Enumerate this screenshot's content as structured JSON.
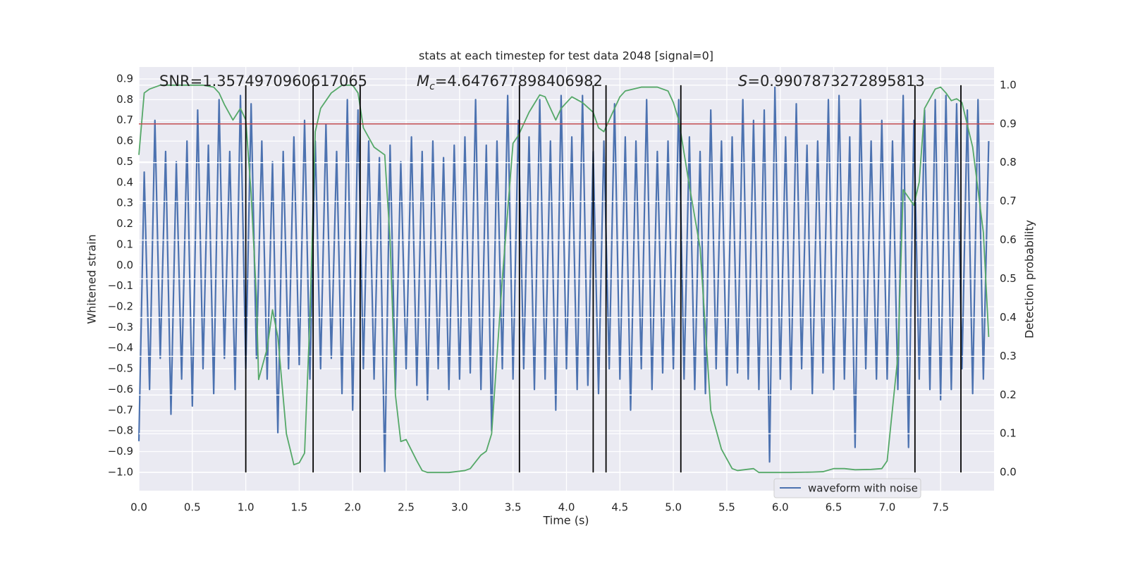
{
  "chart_data": {
    "type": "line",
    "title": "stats at each timestep for test data 2048 [signal=0]",
    "xlabel": "Time (s)",
    "ylabel": "Whitened strain",
    "y2label": "Detection probability",
    "xlim": [
      0,
      8.0
    ],
    "ylim": [
      -1.089,
      0.958
    ],
    "y2lim": [
      -0.047,
      1.047
    ],
    "xticks": [
      {
        "value": 0,
        "label": "0.0"
      },
      0.5,
      {
        "value": 1,
        "label": "1.0"
      },
      1.5,
      {
        "value": 2,
        "label": "2.0"
      },
      2.5,
      {
        "value": 3,
        "label": "3.0"
      },
      3.5,
      {
        "value": 4,
        "label": "4.0"
      },
      4.5,
      {
        "value": 5,
        "label": "5.0"
      },
      5.5,
      {
        "value": 6,
        "label": "6.0"
      },
      6.5,
      {
        "value": 7,
        "label": "7.0"
      },
      7.5
    ],
    "yticks": [
      0.9,
      0.8,
      0.7,
      0.6,
      0.5,
      0.4,
      0.3,
      0.2,
      0.1,
      {
        "value": 0,
        "label": "0.0"
      },
      {
        "value": -0.1,
        "label": "−0.1"
      },
      {
        "value": -0.2,
        "label": "−0.2"
      },
      {
        "value": -0.3,
        "label": "−0.3"
      },
      {
        "value": -0.4,
        "label": "−0.4"
      },
      {
        "value": -0.5,
        "label": "−0.5"
      },
      {
        "value": -0.6,
        "label": "−0.6"
      },
      {
        "value": -0.7,
        "label": "−0.7"
      },
      {
        "value": -0.8,
        "label": "−0.8"
      },
      {
        "value": -0.9,
        "label": "−0.9"
      },
      {
        "value": -1.0,
        "label": "−1.0"
      }
    ],
    "y2ticks": [
      {
        "value": 0,
        "label": "0.0"
      },
      0.1,
      0.2,
      0.3,
      0.4,
      0.5,
      0.6,
      0.7,
      0.8,
      0.9,
      {
        "value": 1,
        "label": "1.0"
      }
    ],
    "grid": true,
    "legend": "lower right",
    "series": [
      {
        "name": "waveform with noise",
        "color": "#4c72b0",
        "x": [
          0,
          0.05,
          0.1,
          0.15,
          0.2,
          0.25,
          0.3,
          0.35,
          0.4,
          0.45,
          0.5,
          0.55,
          0.6,
          0.65,
          0.7,
          0.75,
          0.8,
          0.85,
          0.9,
          0.95,
          1.0,
          1.05,
          1.1,
          1.15,
          1.2,
          1.25,
          1.3,
          1.35,
          1.4,
          1.45,
          1.5,
          1.55,
          1.6,
          1.65,
          1.7,
          1.75,
          1.8,
          1.85,
          1.9,
          1.95,
          2.0,
          2.05,
          2.1,
          2.15,
          2.2,
          2.25,
          2.3,
          2.35,
          2.4,
          2.45,
          2.5,
          2.55,
          2.6,
          2.65,
          2.7,
          2.75,
          2.8,
          2.85,
          2.9,
          2.95,
          3.0,
          3.05,
          3.1,
          3.15,
          3.2,
          3.25,
          3.3,
          3.35,
          3.4,
          3.45,
          3.5,
          3.55,
          3.6,
          3.65,
          3.7,
          3.75,
          3.8,
          3.85,
          3.9,
          3.95,
          4.0,
          4.05,
          4.1,
          4.15,
          4.2,
          4.25,
          4.3,
          4.35,
          4.4,
          4.45,
          4.5,
          4.55,
          4.6,
          4.65,
          4.7,
          4.75,
          4.8,
          4.85,
          4.9,
          4.95,
          5.0,
          5.05,
          5.1,
          5.15,
          5.2,
          5.25,
          5.3,
          5.35,
          5.4,
          5.45,
          5.5,
          5.55,
          5.6,
          5.65,
          5.7,
          5.75,
          5.8,
          5.85,
          5.9,
          5.95,
          6.0,
          6.05,
          6.1,
          6.15,
          6.2,
          6.25,
          6.3,
          6.35,
          6.4,
          6.45,
          6.5,
          6.55,
          6.6,
          6.65,
          6.7,
          6.75,
          6.8,
          6.85,
          6.9,
          6.95,
          7.0,
          7.05,
          7.1,
          7.15,
          7.2,
          7.25,
          7.3,
          7.35,
          7.4,
          7.45,
          7.5,
          7.55,
          7.6,
          7.65,
          7.7,
          7.75,
          7.8,
          7.85,
          7.9,
          7.95
        ],
        "values": [
          -0.85,
          0.45,
          -0.6,
          0.7,
          -0.45,
          0.55,
          -0.72,
          0.5,
          -0.55,
          0.6,
          -0.68,
          0.75,
          -0.5,
          0.58,
          -0.62,
          0.8,
          -0.45,
          0.55,
          -0.6,
          0.82,
          -0.5,
          0.78,
          -0.45,
          0.6,
          -0.55,
          0.5,
          -0.81,
          0.55,
          -0.5,
          0.62,
          -0.48,
          0.7,
          -0.55,
          0.6,
          -0.5,
          0.68,
          -0.45,
          0.55,
          -0.62,
          0.8,
          -0.7,
          0.75,
          -0.5,
          0.6,
          -0.55,
          0.52,
          -1.0,
          0.58,
          -0.6,
          0.5,
          -0.5,
          0.62,
          -0.58,
          0.55,
          -0.65,
          0.6,
          -0.5,
          0.52,
          -0.6,
          0.58,
          -0.55,
          0.62,
          -0.52,
          0.8,
          -0.6,
          0.58,
          -0.8,
          0.6,
          -0.5,
          0.82,
          -0.55,
          0.7,
          -0.5,
          0.62,
          -0.6,
          0.8,
          -0.55,
          0.6,
          -0.7,
          0.82,
          -0.5,
          0.62,
          -0.6,
          0.82,
          -0.58,
          0.55,
          -0.62,
          0.6,
          -0.5,
          0.78,
          -0.55,
          0.62,
          -0.7,
          0.6,
          -0.5,
          0.8,
          -0.6,
          0.55,
          -0.52,
          0.6,
          -0.5,
          0.8,
          -0.55,
          0.62,
          -0.6,
          0.55,
          -0.62,
          0.75,
          -0.5,
          0.6,
          -0.58,
          0.62,
          -0.52,
          0.8,
          -0.55,
          0.7,
          -0.6,
          0.75,
          -0.95,
          0.86,
          -0.55,
          0.62,
          -0.6,
          0.78,
          -0.5,
          0.58,
          -0.62,
          0.6,
          -0.52,
          0.8,
          -0.6,
          0.82,
          -0.55,
          0.62,
          -0.88,
          0.8,
          -0.5,
          0.6,
          -0.55,
          0.7,
          -0.55,
          0.6,
          -0.6,
          0.82,
          -0.88,
          0.7,
          -0.55,
          0.75,
          -0.6,
          0.8,
          -0.65,
          0.82,
          -0.6,
          0.78,
          -0.5,
          0.75,
          -0.62,
          0.8,
          -0.55,
          0.6
        ]
      },
      {
        "color": "#55a868",
        "axis": "y2",
        "x": [
          0,
          0.05,
          0.1,
          0.2,
          0.4,
          0.6,
          0.7,
          0.75,
          0.8,
          0.88,
          0.95,
          1.0,
          1.05,
          1.1,
          1.12,
          1.2,
          1.25,
          1.3,
          1.38,
          1.45,
          1.5,
          1.55,
          1.6,
          1.65,
          1.7,
          1.8,
          1.9,
          2.0,
          2.05,
          2.1,
          2.2,
          2.3,
          2.35,
          2.4,
          2.45,
          2.5,
          2.6,
          2.65,
          2.7,
          2.9,
          3.05,
          3.1,
          3.2,
          3.25,
          3.3,
          3.4,
          3.5,
          3.55,
          3.65,
          3.75,
          3.8,
          3.9,
          3.95,
          4.05,
          4.15,
          4.25,
          4.3,
          4.35,
          4.4,
          4.5,
          4.55,
          4.7,
          4.85,
          4.95,
          5.0,
          5.05,
          5.15,
          5.25,
          5.35,
          5.45,
          5.55,
          5.6,
          5.75,
          5.8,
          5.95,
          6.1,
          6.3,
          6.4,
          6.5,
          6.6,
          6.7,
          6.85,
          6.95,
          7.0,
          7.1,
          7.15,
          7.25,
          7.3,
          7.35,
          7.45,
          7.5,
          7.55,
          7.6,
          7.65,
          7.7,
          7.8,
          7.9,
          7.95
        ],
        "values": [
          0.82,
          0.98,
          0.99,
          1.0,
          1.0,
          1.0,
          0.995,
          0.98,
          0.95,
          0.91,
          0.94,
          0.91,
          0.72,
          0.45,
          0.24,
          0.32,
          0.42,
          0.35,
          0.1,
          0.02,
          0.025,
          0.05,
          0.4,
          0.88,
          0.94,
          0.98,
          1.0,
          1.0,
          0.98,
          0.89,
          0.84,
          0.82,
          0.6,
          0.2,
          0.08,
          0.085,
          0.03,
          0.005,
          0.0,
          0.0,
          0.005,
          0.01,
          0.045,
          0.055,
          0.1,
          0.5,
          0.85,
          0.87,
          0.93,
          0.975,
          0.97,
          0.91,
          0.94,
          0.97,
          0.955,
          0.93,
          0.89,
          0.88,
          0.91,
          0.97,
          0.985,
          0.995,
          0.995,
          0.985,
          0.955,
          0.91,
          0.74,
          0.58,
          0.16,
          0.06,
          0.01,
          0.005,
          0.01,
          0.0,
          0.0,
          0.0,
          0.001,
          0.002,
          0.01,
          0.01,
          0.007,
          0.008,
          0.01,
          0.03,
          0.3,
          0.73,
          0.69,
          0.75,
          0.94,
          0.99,
          0.995,
          0.98,
          0.96,
          0.965,
          0.955,
          0.84,
          0.62,
          0.35
        ]
      }
    ],
    "hlines": [
      {
        "y": 0.9,
        "axis": "y2",
        "color": "#c44e52"
      }
    ],
    "vlines": {
      "x": [
        1.0,
        1.63,
        2.07,
        3.56,
        4.25,
        4.37,
        5.07,
        7.26,
        7.69
      ],
      "ymin": 0,
      "ymax": 1,
      "axis": "y2",
      "color": "#000000"
    },
    "annotations": [
      {
        "text": "SNR=1.3574970960617065"
      },
      {
        "symbol": "M",
        "sub": "c",
        "text": "=4.647677898406982"
      },
      {
        "symbol": "S",
        "text": "=0.9907873272895813"
      }
    ]
  }
}
